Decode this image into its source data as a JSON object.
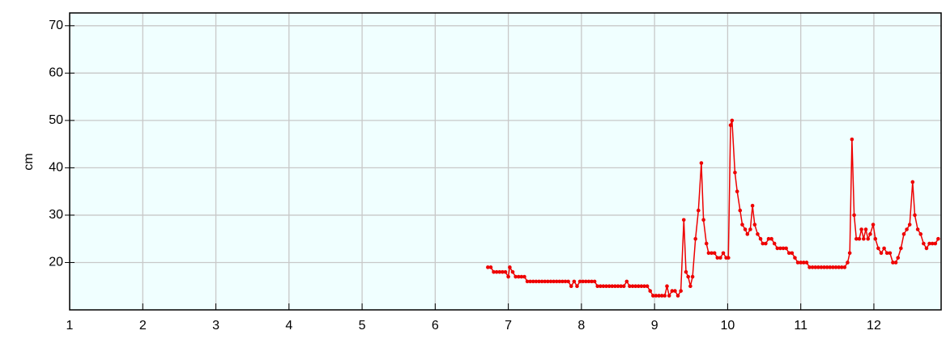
{
  "chart_data": {
    "type": "line",
    "y_label": "cm",
    "x": [
      6.72,
      6.76,
      6.8,
      6.84,
      6.88,
      6.92,
      6.96,
      7.0,
      7.02,
      7.06,
      7.1,
      7.14,
      7.18,
      7.22,
      7.26,
      7.3,
      7.34,
      7.38,
      7.42,
      7.46,
      7.5,
      7.54,
      7.58,
      7.62,
      7.66,
      7.7,
      7.74,
      7.78,
      7.82,
      7.86,
      7.9,
      7.94,
      7.98,
      8.02,
      8.06,
      8.1,
      8.14,
      8.18,
      8.22,
      8.26,
      8.3,
      8.34,
      8.38,
      8.42,
      8.46,
      8.5,
      8.54,
      8.58,
      8.62,
      8.66,
      8.7,
      8.74,
      8.78,
      8.82,
      8.86,
      8.9,
      8.94,
      8.98,
      9.02,
      9.06,
      9.1,
      9.14,
      9.17,
      9.2,
      9.24,
      9.28,
      9.32,
      9.36,
      9.4,
      9.43,
      9.46,
      9.49,
      9.52,
      9.56,
      9.6,
      9.64,
      9.67,
      9.71,
      9.74,
      9.78,
      9.82,
      9.86,
      9.9,
      9.94,
      9.98,
      10.01,
      10.04,
      10.06,
      10.1,
      10.13,
      10.17,
      10.2,
      10.24,
      10.27,
      10.31,
      10.34,
      10.37,
      10.41,
      10.45,
      10.48,
      10.52,
      10.56,
      10.6,
      10.64,
      10.68,
      10.72,
      10.76,
      10.8,
      10.84,
      10.88,
      10.92,
      10.96,
      11.0,
      11.04,
      11.08,
      11.12,
      11.16,
      11.2,
      11.24,
      11.28,
      11.32,
      11.36,
      11.4,
      11.44,
      11.48,
      11.52,
      11.56,
      11.6,
      11.64,
      11.67,
      11.7,
      11.73,
      11.76,
      11.8,
      11.83,
      11.86,
      11.89,
      11.92,
      11.95,
      11.99,
      12.02,
      12.06,
      12.1,
      12.14,
      12.18,
      12.22,
      12.26,
      12.3,
      12.33,
      12.37,
      12.41,
      12.45,
      12.49,
      12.53,
      12.56,
      12.6,
      12.64,
      12.68,
      12.72,
      12.76,
      12.8,
      12.84,
      12.88
    ],
    "series": [
      {
        "name": null,
        "color": "#ee0000",
        "values": [
          19,
          19,
          18,
          18,
          18,
          18,
          18,
          17,
          19,
          18,
          17,
          17,
          17,
          17,
          16,
          16,
          16,
          16,
          16,
          16,
          16,
          16,
          16,
          16,
          16,
          16,
          16,
          16,
          16,
          15,
          16,
          15,
          16,
          16,
          16,
          16,
          16,
          16,
          15,
          15,
          15,
          15,
          15,
          15,
          15,
          15,
          15,
          15,
          16,
          15,
          15,
          15,
          15,
          15,
          15,
          15,
          14,
          13,
          13,
          13,
          13,
          13,
          15,
          13,
          14,
          14,
          13,
          14,
          29,
          18,
          17,
          15,
          17,
          25,
          31,
          41,
          29,
          24,
          22,
          22,
          22,
          21,
          21,
          22,
          21,
          21,
          49,
          50,
          39,
          35,
          31,
          28,
          27,
          26,
          27,
          32,
          28,
          26,
          25,
          24,
          24,
          25,
          25,
          24,
          23,
          23,
          23,
          23,
          22,
          22,
          21,
          20,
          20,
          20,
          20,
          19,
          19,
          19,
          19,
          19,
          19,
          19,
          19,
          19,
          19,
          19,
          19,
          19,
          20,
          22,
          46,
          30,
          25,
          25,
          27,
          25,
          27,
          25,
          26,
          28,
          25,
          23,
          22,
          23,
          22,
          22,
          20,
          20,
          21,
          23,
          26,
          27,
          28,
          37,
          30,
          27,
          26,
          24,
          23,
          24,
          24,
          24,
          25
        ]
      }
    ],
    "xlim": [
      1,
      12.92
    ],
    "ylim": [
      10,
      72.7
    ],
    "xticks": [
      1,
      2,
      3,
      4,
      5,
      6,
      7,
      8,
      9,
      10,
      11,
      12
    ],
    "yticks": [
      20,
      30,
      40,
      50,
      60,
      70
    ],
    "grid": true,
    "background": "#f0ffff"
  }
}
